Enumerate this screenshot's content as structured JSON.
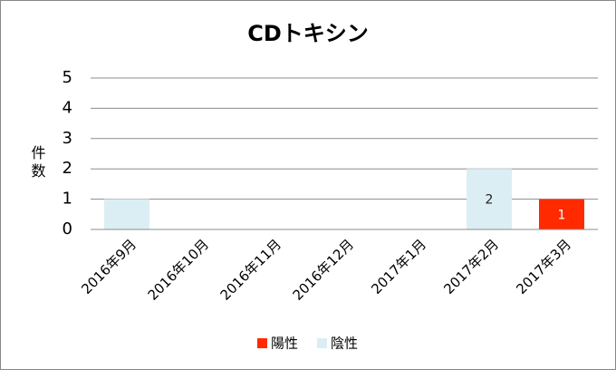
{
  "chart_data": {
    "type": "stacked_bar",
    "title": "CDトキシン",
    "y_label": "件数",
    "categories": [
      "2016年9月",
      "2016年10月",
      "2016年11月",
      "2016年12月",
      "2017年1月",
      "2017年2月",
      "2017年3月"
    ],
    "series": [
      {
        "name": "陽性",
        "color": "#ff2a00",
        "values": [
          0,
          0,
          0,
          0,
          0,
          0,
          1
        ],
        "value_labels": [
          null,
          null,
          null,
          null,
          null,
          null,
          "1"
        ]
      },
      {
        "name": "陰性",
        "color": "#dbeef4",
        "values": [
          1,
          0,
          0,
          0,
          0,
          2,
          0
        ],
        "value_labels": [
          null,
          null,
          null,
          null,
          null,
          "2",
          null
        ]
      }
    ],
    "ylim": [
      0,
      5
    ],
    "yticks": [
      0,
      1,
      2,
      3,
      4,
      5
    ],
    "grid": true,
    "legend": "bottom"
  }
}
